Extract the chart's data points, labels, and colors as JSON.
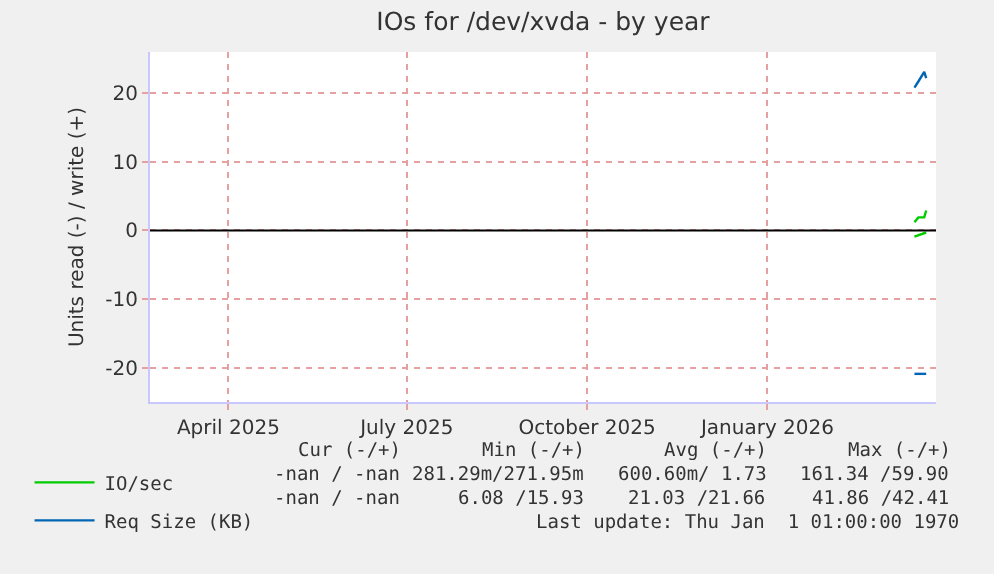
{
  "chart_data": {
    "type": "line",
    "title": "IOs for /dev/xvda - by year",
    "ylabel": "Units read (-) / write (+)",
    "xlim": [
      "2025-02-20",
      "2026-03-28"
    ],
    "xticks": [
      {
        "value": "2025-04-01",
        "label": "April 2025"
      },
      {
        "value": "2025-07-01",
        "label": "July 2025"
      },
      {
        "value": "2025-10-01",
        "label": "October 2025"
      },
      {
        "value": "2026-01-01",
        "label": "January 2026"
      }
    ],
    "ylim": [
      -25,
      26
    ],
    "yticks": [
      -20,
      -10,
      0,
      10,
      20
    ],
    "grid": true,
    "line_style": "solid",
    "marker": "none",
    "legend": "bottom left",
    "ref_lines": [
      {
        "axis": "y",
        "value": 0,
        "color": "#000000"
      }
    ],
    "series": [
      {
        "color": "#00cc00",
        "x": [
          "2026-03-17",
          "2026-03-23"
        ],
        "values": [
          -0.9,
          -0.3
        ]
      },
      {
        "name": "IO/sec",
        "color": "#00cc00",
        "x": [
          "2026-03-17",
          "2026-03-19",
          "2026-03-22",
          "2026-03-23"
        ],
        "values": [
          1.2,
          1.9,
          1.9,
          2.9
        ]
      },
      {
        "color": "#0066b3",
        "x": [
          "2026-03-17",
          "2026-03-23"
        ],
        "values": [
          -20.9,
          -20.9
        ]
      },
      {
        "name": "Req Size (KB)",
        "color": "#0066b3",
        "x": [
          "2026-03-17",
          "2026-03-19",
          "2026-03-22",
          "2026-03-23"
        ],
        "values": [
          20.8,
          21.7,
          23.1,
          22.2
        ]
      }
    ],
    "annotations": [
      "Cur (-/+)",
      "Min (-/+)",
      "Avg (-/+)",
      "Max (-/+)",
      "-nan / -nan",
      "281.29m/271.95m",
      "600.60m/ 1.73",
      "161.34 /59.90",
      "-nan / -nan",
      "6.08 /15.93",
      "21.03 /21.66",
      "41.86 /42.41",
      "Last update: Thu Jan  1 01:00:00 1970"
    ]
  }
}
